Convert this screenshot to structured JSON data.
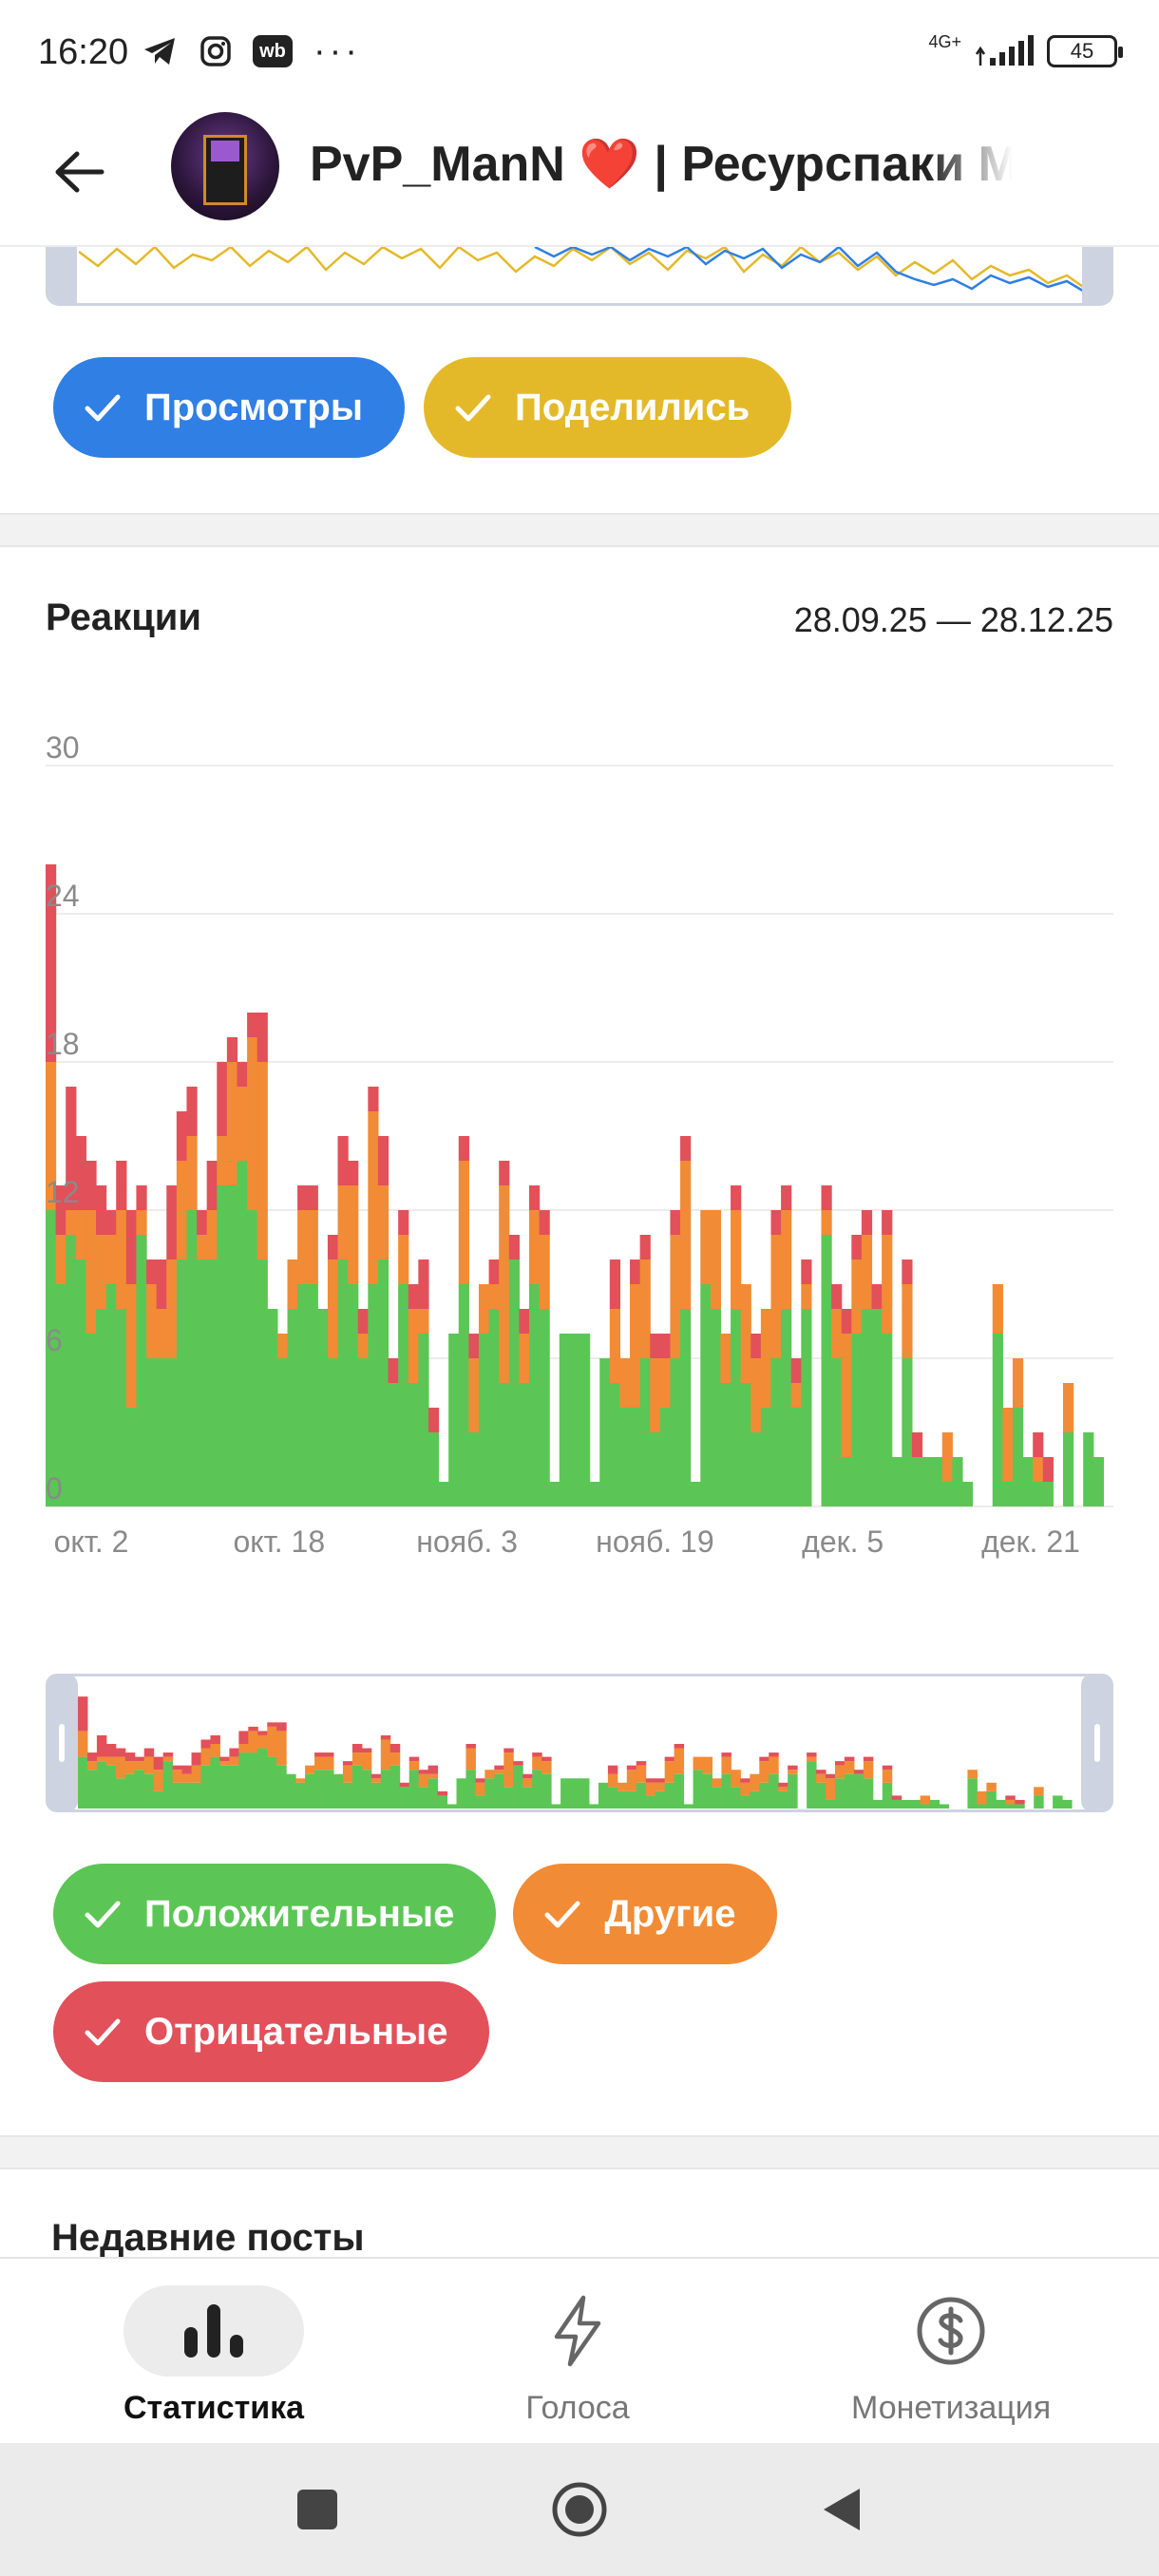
{
  "status_bar": {
    "time": "16:20",
    "left_icons": [
      "telegram-icon",
      "instagram-icon",
      "wb-icon",
      "more-icon"
    ],
    "wb_label": "wb",
    "dots": "···",
    "network_label": "4G+",
    "battery_level": "45"
  },
  "header": {
    "back_icon": "arrow-left-icon",
    "title": "PvP_ManN ❤️ | Ресурспаки M"
  },
  "views_chart": {
    "series": [
      {
        "name": "Просмотры",
        "color": "#2f7fe4",
        "enabled": true
      },
      {
        "name": "Поделились",
        "color": "#e4b929",
        "enabled": true
      }
    ]
  },
  "reactions": {
    "title": "Реакции",
    "date_range": "28.09.25 — 28.12.25",
    "series_toggles": [
      {
        "name": "Положительные",
        "color": "#5bc655",
        "enabled": true
      },
      {
        "name": "Другие",
        "color": "#f28b35",
        "enabled": true
      },
      {
        "name": "Отрицательные",
        "color": "#e2505a",
        "enabled": true
      }
    ]
  },
  "chart_data": {
    "type": "bar",
    "stacked": true,
    "title": "Реакции",
    "xlabel": "",
    "ylabel": "",
    "ylim": [
      0,
      30
    ],
    "yticks": [
      "0",
      "6",
      "12",
      "18",
      "24",
      "30"
    ],
    "x_tick_labels": [
      "окт. 2",
      "окт. 18",
      "нояб. 3",
      "нояб. 19",
      "дек. 5",
      "дек. 21"
    ],
    "grid": true,
    "legend": "bottom",
    "series": [
      {
        "name": "Положительные",
        "color": "#5bc655",
        "values": [
          12,
          9,
          11,
          10,
          7,
          8,
          9,
          8,
          4,
          11,
          6,
          6,
          6,
          10,
          12,
          10,
          10,
          13,
          13,
          14,
          12,
          10,
          8,
          6,
          8,
          9,
          9,
          8,
          6,
          10,
          9,
          6,
          9,
          10,
          5,
          9,
          5,
          7,
          3,
          1,
          7,
          9,
          3,
          7,
          8,
          5,
          10,
          5,
          9,
          8,
          1,
          7,
          7,
          7,
          1,
          6,
          5,
          4,
          4,
          6,
          3,
          4,
          6,
          8,
          1,
          9,
          8,
          5,
          8,
          5,
          3,
          4,
          6,
          8,
          4,
          8,
          0,
          11,
          6,
          2,
          7,
          8,
          8,
          7,
          2,
          6,
          2,
          2,
          2,
          1,
          2,
          1,
          0,
          0,
          7,
          1,
          4,
          2,
          1,
          1,
          0,
          3,
          0,
          3,
          2,
          0
        ]
      },
      {
        "name": "Другие",
        "color": "#f28b35",
        "values": [
          6,
          2,
          1,
          2,
          5,
          3,
          2,
          4,
          5,
          1,
          3,
          2,
          4,
          4,
          3,
          1,
          2,
          2,
          5,
          3,
          7,
          8,
          0,
          1,
          2,
          3,
          3,
          0,
          4,
          3,
          4,
          1,
          7,
          3,
          0,
          2,
          3,
          1,
          0,
          0,
          0,
          5,
          3,
          2,
          1,
          8,
          0,
          2,
          3,
          3,
          0,
          0,
          0,
          0,
          0,
          0,
          3,
          2,
          5,
          4,
          3,
          2,
          5,
          6,
          0,
          3,
          4,
          2,
          4,
          4,
          3,
          4,
          5,
          4,
          1,
          1,
          0,
          1,
          2,
          5,
          3,
          3,
          0,
          4,
          0,
          3,
          0,
          0,
          0,
          2,
          0,
          0,
          0,
          0,
          2,
          3,
          2,
          0,
          1,
          0,
          0,
          2,
          0,
          0,
          0,
          0
        ]
      },
      {
        "name": "Отрицательные",
        "color": "#e2505a",
        "values": [
          8,
          2,
          5,
          3,
          2,
          2,
          1,
          2,
          3,
          1,
          1,
          2,
          3,
          2,
          2,
          1,
          2,
          3,
          1,
          1,
          1,
          2,
          0,
          0,
          0,
          1,
          1,
          0,
          1,
          2,
          1,
          1,
          1,
          2,
          1,
          1,
          1,
          2,
          1,
          0,
          0,
          1,
          1,
          0,
          1,
          1,
          1,
          1,
          1,
          1,
          0,
          0,
          0,
          0,
          0,
          0,
          2,
          0,
          1,
          1,
          1,
          1,
          1,
          1,
          0,
          0,
          0,
          0,
          1,
          0,
          1,
          0,
          1,
          1,
          1,
          1,
          0,
          1,
          1,
          1,
          1,
          1,
          1,
          1,
          0,
          1,
          1,
          0,
          0,
          0,
          0,
          0,
          0,
          0,
          0,
          0,
          0,
          0,
          1,
          1,
          0,
          0,
          0,
          0,
          0,
          0
        ]
      }
    ]
  },
  "recent_posts": {
    "title": "Недавние посты"
  },
  "bottom_nav": {
    "items": [
      {
        "label": "Статистика",
        "icon": "bar-chart-icon",
        "active": true
      },
      {
        "label": "Голоса",
        "icon": "lightning-icon",
        "active": false
      },
      {
        "label": "Монетизация",
        "icon": "dollar-circle-icon",
        "active": false
      }
    ]
  },
  "system_nav": {
    "buttons": [
      "recents-square-icon",
      "home-circle-icon",
      "back-triangle-icon"
    ]
  }
}
